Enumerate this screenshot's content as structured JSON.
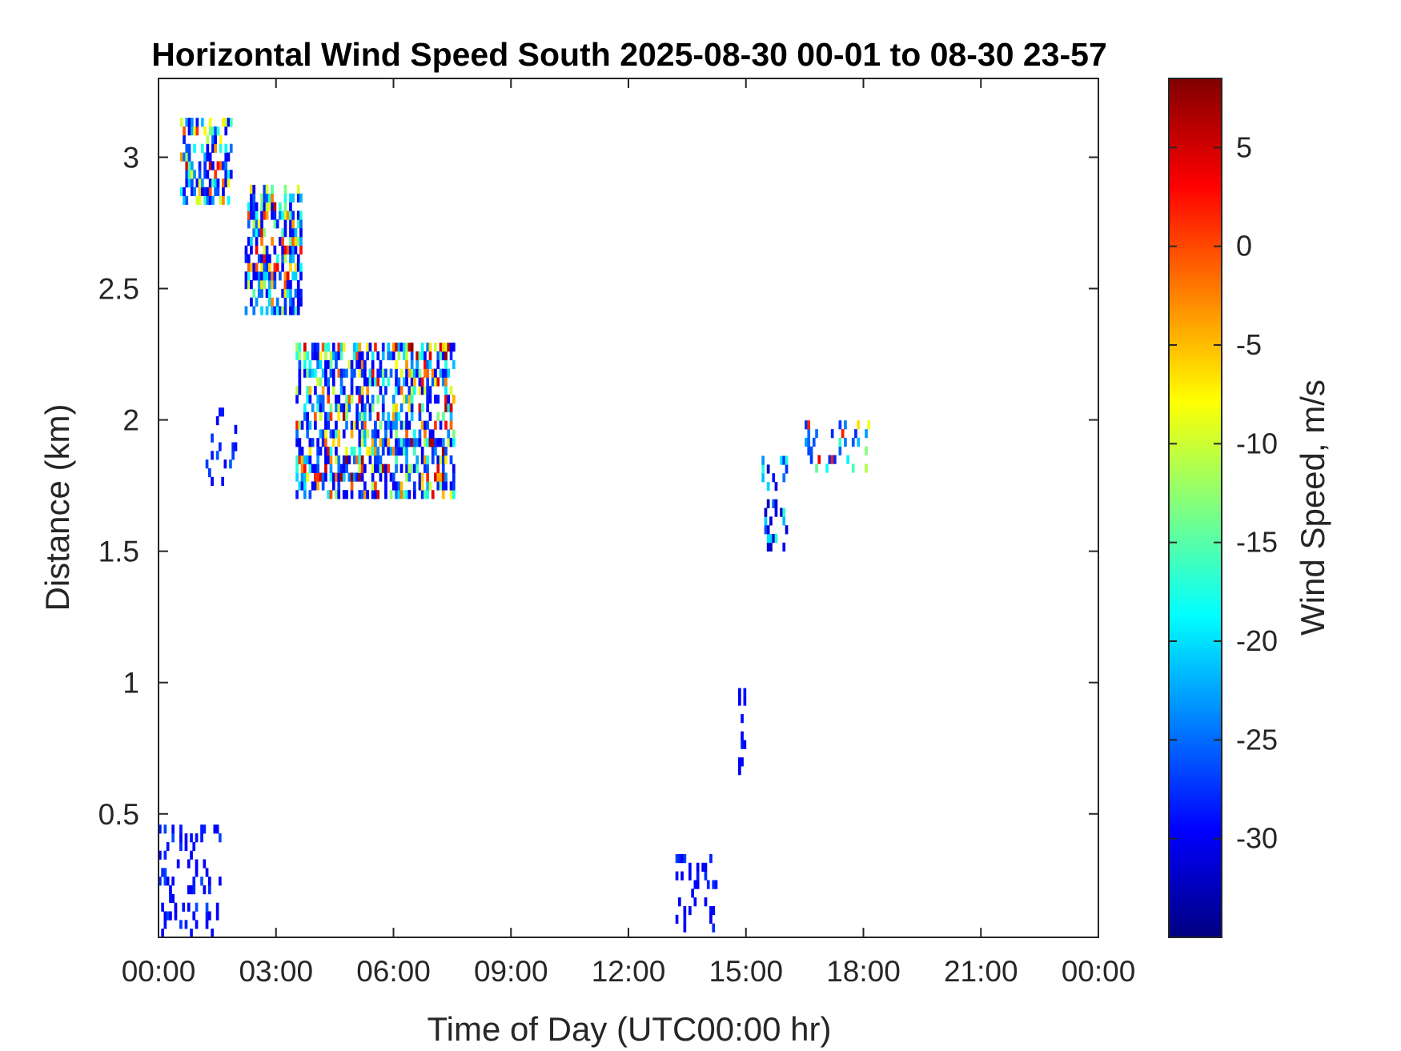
{
  "chart_data": {
    "type": "heatmap",
    "title": "Horizontal Wind Speed South 2025-08-30 00-01 to 08-30 23-57",
    "xlabel": "Time of Day (UTC00:00 hr)",
    "ylabel": "Distance (km)",
    "colorbar_label": "Wind Speed, m/s",
    "xlim_hours": [
      0,
      24
    ],
    "ylim_km": [
      0.03,
      3.3
    ],
    "x_ticks": [
      "00:00",
      "03:00",
      "06:00",
      "09:00",
      "12:00",
      "15:00",
      "18:00",
      "21:00",
      "00:00"
    ],
    "y_ticks": [
      "0.5",
      "1",
      "1.5",
      "2",
      "2.5",
      "3"
    ],
    "y_tick_values": [
      0.5,
      1,
      1.5,
      2,
      2.5,
      3
    ],
    "colorbar_ticks": [
      "5",
      "0",
      "-5",
      "-10",
      "-15",
      "-20",
      "-25",
      "-30"
    ],
    "colorbar_tick_values": [
      5,
      0,
      -5,
      -10,
      -15,
      -20,
      -25,
      -30
    ],
    "clim": [
      -35,
      8.5
    ],
    "colormap": "jet",
    "grid": false,
    "clusters": [
      {
        "x": [
          0.55,
          1.9
        ],
        "y": [
          2.82,
          3.15
        ],
        "v": [
          -30,
          7
        ]
      },
      {
        "x": [
          2.2,
          3.7
        ],
        "y": [
          2.4,
          2.9
        ],
        "v": [
          -30,
          7
        ]
      },
      {
        "x": [
          3.5,
          7.6
        ],
        "y": [
          1.7,
          2.3
        ],
        "v": [
          -30,
          8
        ]
      },
      {
        "x": [
          1.2,
          2.0
        ],
        "y": [
          1.75,
          2.05
        ],
        "v": [
          -30,
          -25
        ]
      },
      {
        "x": [
          0.0,
          1.6
        ],
        "y": [
          0.03,
          0.45
        ],
        "v": [
          -30,
          -26
        ]
      },
      {
        "x": [
          15.4,
          16.1
        ],
        "y": [
          1.5,
          1.85
        ],
        "v": [
          -32,
          -15
        ]
      },
      {
        "x": [
          16.5,
          18.2
        ],
        "y": [
          1.8,
          2.0
        ],
        "v": [
          -28,
          7
        ]
      },
      {
        "x": [
          14.8,
          15.0
        ],
        "y": [
          0.55,
          1.02
        ],
        "v": [
          -30,
          -27
        ]
      },
      {
        "x": [
          13.2,
          14.3
        ],
        "y": [
          0.05,
          0.35
        ],
        "v": [
          -30,
          -27
        ]
      }
    ]
  }
}
